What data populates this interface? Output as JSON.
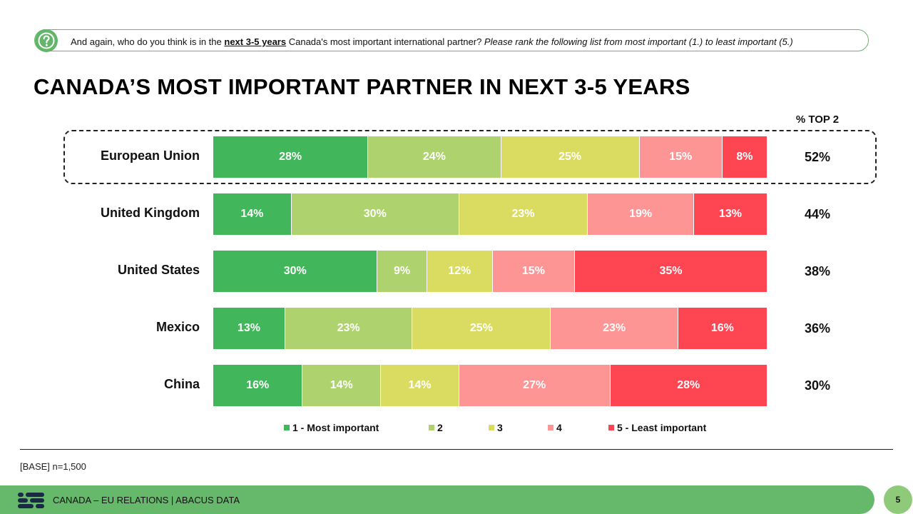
{
  "question": {
    "prefix": "And again, who do you think is in the ",
    "emphasis": "next 3-5 years",
    "middle": " Canada's most important international partner? ",
    "instruction": "Please rank the following list from most important (1.) to least important (5.)"
  },
  "chart_data": {
    "type": "bar",
    "orientation": "horizontal-stacked",
    "title": "CANADA’S MOST IMPORTANT PARTNER IN NEXT 3-5 YEARS",
    "top2_header": "% TOP 2",
    "categories": [
      "European Union",
      "United Kingdom",
      "United States",
      "Mexico",
      "China"
    ],
    "series": [
      {
        "name": "1 - Most important",
        "color": "#41b65a",
        "values": [
          28,
          14,
          30,
          13,
          16
        ]
      },
      {
        "name": "2",
        "color": "#aed36e",
        "values": [
          24,
          30,
          9,
          23,
          14
        ]
      },
      {
        "name": "3",
        "color": "#dadc62",
        "values": [
          25,
          23,
          12,
          25,
          14
        ]
      },
      {
        "name": "4",
        "color": "#fd9595",
        "values": [
          15,
          19,
          15,
          23,
          27
        ]
      },
      {
        "name": "5 - Least important",
        "color": "#fd4651",
        "values": [
          8,
          13,
          35,
          16,
          28
        ]
      }
    ],
    "top2": [
      "52%",
      "44%",
      "38%",
      "36%",
      "30%"
    ],
    "highlighted_category": "European Union"
  },
  "base_note": "[BASE] n=1,500",
  "footer": {
    "text": "CANADA – EU RELATIONS  |  ABACUS DATA",
    "page": "5"
  }
}
